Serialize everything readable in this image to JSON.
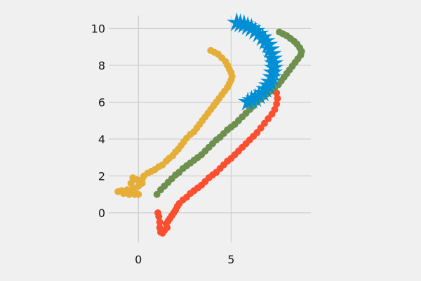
{
  "chart_data": {
    "type": "scatter",
    "title": "",
    "xlabel": "",
    "ylabel": "",
    "xlim": [
      -1.6,
      9.3
    ],
    "ylim": [
      -1.6,
      10.7
    ],
    "xticks": [
      0,
      5
    ],
    "xtick_labels": [
      "0",
      "5"
    ],
    "yticks": [
      0,
      2,
      4,
      6,
      8,
      10
    ],
    "ytick_labels": [
      "0",
      "2",
      "4",
      "6",
      "8",
      "10"
    ],
    "grid": true,
    "legend": "none",
    "series": [
      {
        "color": "#e5ae38",
        "marker": "circle",
        "points": [
          [
            3.9,
            8.8
          ],
          [
            4.1,
            8.7
          ],
          [
            4.3,
            8.6
          ],
          [
            4.5,
            8.4
          ],
          [
            4.7,
            8.2
          ],
          [
            4.8,
            8.0
          ],
          [
            4.9,
            7.8
          ],
          [
            5.0,
            7.6
          ],
          [
            5.05,
            7.4
          ],
          [
            5.0,
            7.2
          ],
          [
            4.9,
            7.0
          ],
          [
            4.8,
            6.8
          ],
          [
            4.65,
            6.6
          ],
          [
            4.5,
            6.4
          ],
          [
            4.35,
            6.2
          ],
          [
            4.2,
            6.0
          ],
          [
            4.05,
            5.8
          ],
          [
            3.9,
            5.6
          ],
          [
            3.75,
            5.4
          ],
          [
            3.6,
            5.2
          ],
          [
            3.45,
            5.0
          ],
          [
            3.3,
            4.8
          ],
          [
            3.15,
            4.6
          ],
          [
            3.0,
            4.4
          ],
          [
            2.8,
            4.25
          ],
          [
            2.6,
            4.05
          ],
          [
            2.45,
            3.85
          ],
          [
            2.3,
            3.65
          ],
          [
            2.15,
            3.45
          ],
          [
            2.0,
            3.3
          ],
          [
            1.85,
            3.1
          ],
          [
            1.65,
            2.95
          ],
          [
            1.5,
            2.8
          ],
          [
            1.3,
            2.6
          ],
          [
            1.1,
            2.5
          ],
          [
            0.9,
            2.35
          ],
          [
            0.7,
            2.25
          ],
          [
            0.5,
            2.15
          ],
          [
            0.3,
            2.0
          ],
          [
            0.2,
            1.8
          ],
          [
            0.1,
            1.6
          ],
          [
            0.0,
            1.45
          ],
          [
            -0.3,
            1.35
          ],
          [
            -0.6,
            1.25
          ],
          [
            -0.9,
            1.2
          ],
          [
            -1.1,
            1.15
          ],
          [
            -0.8,
            1.05
          ],
          [
            -0.5,
            1.0
          ],
          [
            -0.3,
            1.1
          ],
          [
            -0.2,
            1.3
          ],
          [
            -0.4,
            1.6
          ],
          [
            -0.3,
            1.9
          ],
          [
            -0.1,
            1.8
          ],
          [
            0.2,
            1.6
          ],
          [
            0.0,
            1.0
          ],
          [
            -0.2,
            1.0
          ]
        ]
      },
      {
        "color": "#fc4f30",
        "marker": "circle",
        "points": [
          [
            7.0,
            7.0
          ],
          [
            7.3,
            6.8
          ],
          [
            7.45,
            6.5
          ],
          [
            7.5,
            6.2
          ],
          [
            7.45,
            5.9
          ],
          [
            7.35,
            5.6
          ],
          [
            7.2,
            5.35
          ],
          [
            7.0,
            5.1
          ],
          [
            6.8,
            4.85
          ],
          [
            6.6,
            4.6
          ],
          [
            6.4,
            4.35
          ],
          [
            6.2,
            4.15
          ],
          [
            6.0,
            3.95
          ],
          [
            5.8,
            3.75
          ],
          [
            5.6,
            3.55
          ],
          [
            5.4,
            3.35
          ],
          [
            5.2,
            3.15
          ],
          [
            5.0,
            2.95
          ],
          [
            4.8,
            2.8
          ],
          [
            4.6,
            2.6
          ],
          [
            4.4,
            2.4
          ],
          [
            4.2,
            2.2
          ],
          [
            4.0,
            2.05
          ],
          [
            3.8,
            1.9
          ],
          [
            3.6,
            1.7
          ],
          [
            3.4,
            1.5
          ],
          [
            3.2,
            1.35
          ],
          [
            3.0,
            1.2
          ],
          [
            2.8,
            1.05
          ],
          [
            2.6,
            0.85
          ],
          [
            2.4,
            0.7
          ],
          [
            2.2,
            0.5
          ],
          [
            2.1,
            0.35
          ],
          [
            2.0,
            0.15
          ],
          [
            1.9,
            0.0
          ],
          [
            1.8,
            -0.15
          ],
          [
            1.7,
            -0.3
          ],
          [
            1.6,
            -0.45
          ],
          [
            1.5,
            -0.6
          ],
          [
            1.55,
            -0.8
          ],
          [
            1.4,
            -0.95
          ],
          [
            1.3,
            -1.1
          ],
          [
            1.2,
            -1.05
          ],
          [
            1.15,
            -0.8
          ],
          [
            1.15,
            -0.5
          ],
          [
            1.1,
            -0.2
          ],
          [
            1.05,
            0.0
          ]
        ]
      },
      {
        "color": "#6d904f",
        "marker": "circle",
        "points": [
          [
            7.6,
            9.8
          ],
          [
            7.8,
            9.7
          ],
          [
            8.0,
            9.6
          ],
          [
            8.2,
            9.45
          ],
          [
            8.4,
            9.3
          ],
          [
            8.55,
            9.15
          ],
          [
            8.7,
            8.95
          ],
          [
            8.8,
            8.75
          ],
          [
            8.75,
            8.55
          ],
          [
            8.6,
            8.35
          ],
          [
            8.45,
            8.15
          ],
          [
            8.3,
            7.95
          ],
          [
            8.15,
            7.75
          ],
          [
            8.0,
            7.55
          ],
          [
            7.85,
            7.35
          ],
          [
            7.7,
            7.15
          ],
          [
            7.55,
            6.95
          ],
          [
            7.35,
            6.8
          ],
          [
            7.15,
            6.6
          ],
          [
            6.95,
            6.45
          ],
          [
            6.75,
            6.3
          ],
          [
            6.6,
            6.15
          ],
          [
            6.4,
            6.0
          ],
          [
            6.2,
            5.8
          ],
          [
            6.0,
            5.6
          ],
          [
            5.8,
            5.4
          ],
          [
            5.6,
            5.2
          ],
          [
            5.4,
            5.0
          ],
          [
            5.2,
            4.8
          ],
          [
            5.0,
            4.65
          ],
          [
            4.8,
            4.5
          ],
          [
            4.6,
            4.3
          ],
          [
            4.4,
            4.1
          ],
          [
            4.2,
            3.95
          ],
          [
            4.0,
            3.75
          ],
          [
            3.8,
            3.55
          ],
          [
            3.6,
            3.35
          ],
          [
            3.4,
            3.15
          ],
          [
            3.2,
            3.0
          ],
          [
            3.0,
            2.85
          ],
          [
            2.8,
            2.7
          ],
          [
            2.6,
            2.55
          ],
          [
            2.4,
            2.4
          ],
          [
            2.2,
            2.2
          ],
          [
            2.0,
            2.05
          ],
          [
            1.8,
            1.85
          ],
          [
            1.6,
            1.65
          ],
          [
            1.4,
            1.45
          ],
          [
            1.2,
            1.25
          ],
          [
            1.0,
            1.0
          ]
        ]
      },
      {
        "color": "#008fd5",
        "marker": "star",
        "points": [
          [
            5.3,
            10.3
          ],
          [
            5.5,
            10.25
          ],
          [
            5.7,
            10.2
          ],
          [
            5.9,
            10.1
          ],
          [
            6.1,
            10.0
          ],
          [
            6.3,
            9.85
          ],
          [
            6.5,
            9.7
          ],
          [
            6.7,
            9.5
          ],
          [
            6.85,
            9.3
          ],
          [
            7.0,
            9.1
          ],
          [
            7.1,
            8.85
          ],
          [
            7.2,
            8.6
          ],
          [
            7.25,
            8.35
          ],
          [
            7.3,
            8.1
          ],
          [
            7.3,
            7.85
          ],
          [
            7.25,
            7.6
          ],
          [
            7.2,
            7.35
          ],
          [
            7.1,
            7.1
          ],
          [
            7.0,
            6.9
          ],
          [
            6.85,
            6.7
          ],
          [
            6.7,
            6.5
          ],
          [
            6.5,
            6.35
          ],
          [
            6.3,
            6.2
          ],
          [
            6.1,
            6.1
          ],
          [
            5.9,
            6.0
          ]
        ]
      }
    ]
  }
}
